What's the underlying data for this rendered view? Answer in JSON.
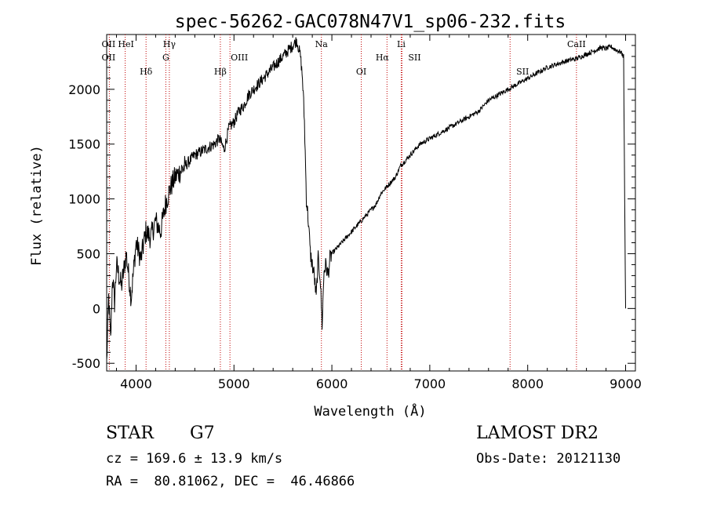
{
  "chart_data": {
    "type": "line",
    "title": "spec-56262-GAC078N47V1_sp06-232.fits",
    "xlabel": "Wavelength (Å)",
    "ylabel": "Flux (relative)",
    "xlim": [
      3700,
      9100
    ],
    "ylim": [
      -570,
      2500
    ],
    "xticks": [
      4000,
      5000,
      6000,
      7000,
      8000,
      9000
    ],
    "yticks": [
      -500,
      0,
      500,
      1000,
      1500,
      2000
    ],
    "grid": false,
    "series": [
      {
        "x": [
          3700,
          3720,
          3740,
          3760,
          3780,
          3800,
          3850,
          3900,
          3950,
          4000,
          4050,
          4100,
          4150,
          4200,
          4250,
          4300,
          4350,
          4400,
          4450,
          4500,
          4600,
          4700,
          4800,
          4850,
          4900,
          4950,
          5000,
          5050,
          5100,
          5150,
          5200,
          5250,
          5300,
          5350,
          5400,
          5450,
          5500,
          5550,
          5600,
          5620,
          5640,
          5660,
          5680,
          5700,
          5720,
          5740,
          5760,
          5780,
          5800,
          5820,
          5840,
          5860,
          5880,
          5900,
          5920,
          5940,
          5960,
          5980,
          6000,
          6050,
          6100,
          6150,
          6200,
          6250,
          6300,
          6350,
          6400,
          6450,
          6500,
          6550,
          6600,
          6650,
          6700,
          6750,
          6800,
          6900,
          7000,
          7100,
          7200,
          7300,
          7400,
          7500,
          7600,
          7700,
          7800,
          7900,
          8000,
          8100,
          8200,
          8300,
          8400,
          8500,
          8550,
          8600,
          8650,
          8700,
          8750,
          8800,
          8850,
          8900,
          8950,
          8980,
          8990,
          9000
        ],
        "y": [
          -500,
          100,
          -300,
          300,
          50,
          400,
          200,
          500,
          100,
          600,
          450,
          700,
          650,
          800,
          700,
          950,
          1100,
          1200,
          1250,
          1300,
          1400,
          1450,
          1500,
          1550,
          1450,
          1650,
          1700,
          1800,
          1850,
          1950,
          2000,
          2050,
          2100,
          2150,
          2200,
          2250,
          2300,
          2350,
          2400,
          2420,
          2450,
          2380,
          2300,
          2100,
          1700,
          1000,
          800,
          500,
          400,
          300,
          100,
          450,
          300,
          -150,
          350,
          400,
          300,
          450,
          500,
          550,
          600,
          650,
          700,
          750,
          800,
          850,
          900,
          950,
          1050,
          1100,
          1150,
          1200,
          1300,
          1350,
          1400,
          1500,
          1550,
          1600,
          1650,
          1700,
          1750,
          1800,
          1900,
          1950,
          2000,
          2050,
          2100,
          2150,
          2200,
          2230,
          2260,
          2280,
          2300,
          2320,
          2340,
          2360,
          2380,
          2370,
          2390,
          2360,
          2340,
          2300,
          1000,
          0
        ]
      }
    ],
    "lines": [
      {
        "label": "OII",
        "x": 3727
      },
      {
        "label": "HeI",
        "x": 3889
      },
      {
        "label": "Hδ",
        "x": 4102
      },
      {
        "label": "Hγ",
        "x": 4340
      },
      {
        "label": "G",
        "x": 4304
      },
      {
        "label": "Hβ",
        "x": 4861
      },
      {
        "label": "OIII",
        "x": 4959
      },
      {
        "label": "Na",
        "x": 5893
      },
      {
        "label": "OI",
        "x": 6300
      },
      {
        "label": "Hα",
        "x": 6563
      },
      {
        "label": "Li",
        "x": 6708
      },
      {
        "label": "SII",
        "x": 6716
      },
      {
        "label": "SII",
        "x": 7820
      },
      {
        "label": "CaII",
        "x": 8498
      }
    ]
  },
  "info": {
    "object": "STAR",
    "subclass": "G7",
    "survey": "LAMOST DR2",
    "cz": "cz = 169.6 ± 13.9 km/s",
    "obsdate": "Obs-Date: 20121130",
    "radec": "RA =  80.81062, DEC =  46.46866"
  }
}
